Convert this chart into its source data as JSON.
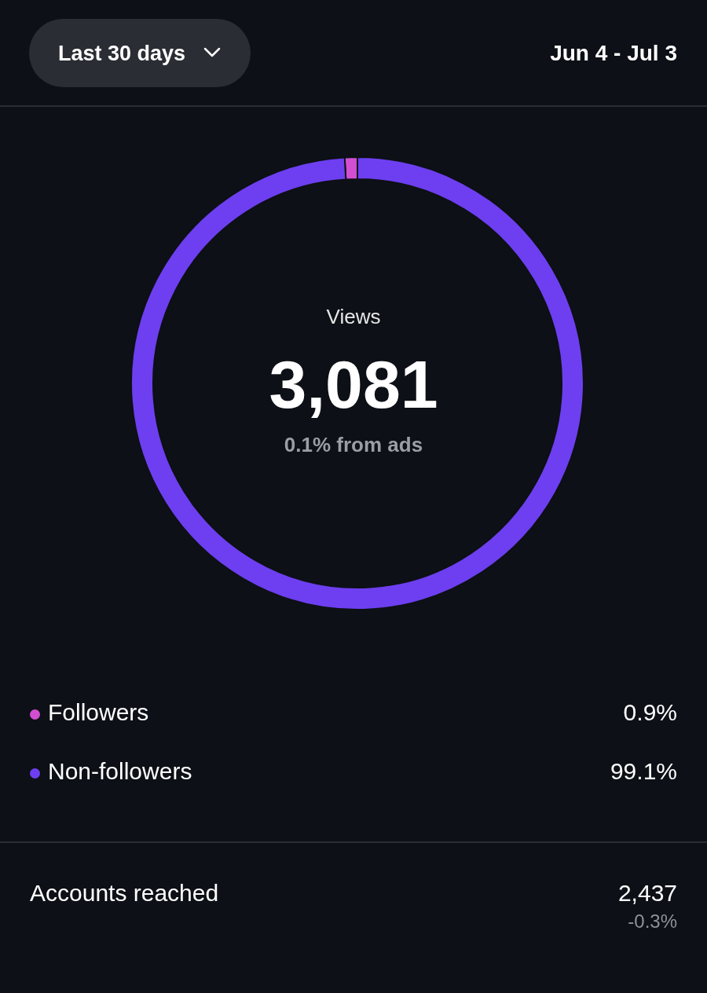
{
  "chart_data": {
    "type": "donut",
    "categories": [
      "Followers",
      "Non-followers"
    ],
    "values": [
      0.9,
      99.1
    ],
    "colors": [
      "#d24fd1",
      "#6d3ff0"
    ],
    "value_labels": [
      "0.9%",
      "99.1%"
    ],
    "legend": "bottom",
    "annotations": [
      "Last 30 days",
      "Jun 4 - Jul 3",
      "Views",
      "3,081",
      "0.1% from ads",
      "Accounts reached",
      "2,437",
      "-0.3%"
    ]
  }
}
